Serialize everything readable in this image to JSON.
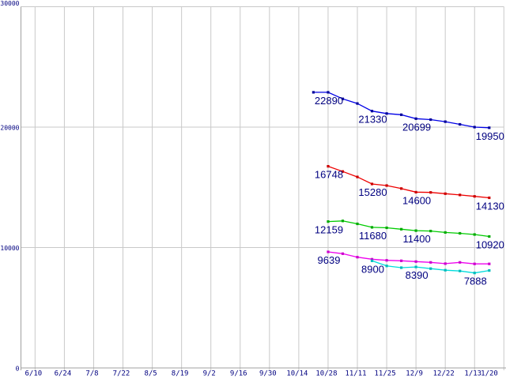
{
  "chart_data": {
    "type": "line",
    "title": "",
    "grid": true,
    "background": "#ffffff",
    "gridline_color": "#c9c9c9",
    "axis_color": "#a0a0a0",
    "tick_label_color": "#000080",
    "data_label_color": "#000080",
    "ylim": [
      0,
      30000
    ],
    "legend": "none",
    "x_tick_labels": [
      "6/10",
      "6/24",
      "7/8",
      "7/22",
      "8/5",
      "8/19",
      "9/2",
      "9/16",
      "9/30",
      "10/14",
      "10/28",
      "11/11",
      "11/25",
      "12/9",
      "12/22",
      "1/13",
      "1/20"
    ],
    "y_ticks": [
      {
        "label": "0",
        "value": 0
      },
      {
        "label": "10000",
        "value": 10000
      },
      {
        "label": "20000",
        "value": 20000
      },
      {
        "label": "30000",
        "value": 30000
      }
    ],
    "series": [
      {
        "name": "series-1-blue",
        "color": "#0000e6",
        "marker_color": "#000099",
        "start_step": 1,
        "values": [
          22890,
          22890,
          22350,
          21960,
          21330,
          21130,
          21030,
          20699,
          20620,
          20450,
          20230,
          20000,
          19950
        ],
        "labels": [
          {
            "index": 1,
            "text": "22890"
          },
          {
            "index": 4,
            "text": "21330"
          },
          {
            "index": 7,
            "text": "20699"
          },
          {
            "index": 12,
            "text": "19950"
          }
        ]
      },
      {
        "name": "series-2-red",
        "color": "#ee0000",
        "marker_color": "#cc0000",
        "start_step": 2,
        "values": [
          16748,
          16315,
          15860,
          15280,
          15150,
          14900,
          14600,
          14580,
          14470,
          14370,
          14250,
          14130
        ],
        "labels": [
          {
            "index": 0,
            "text": "16748"
          },
          {
            "index": 3,
            "text": "15280"
          },
          {
            "index": 6,
            "text": "14600"
          },
          {
            "index": 11,
            "text": "14130"
          }
        ]
      },
      {
        "name": "series-3-green",
        "color": "#00cc00",
        "marker_color": "#00aa00",
        "start_step": 2,
        "values": [
          12159,
          12210,
          11970,
          11680,
          11640,
          11520,
          11400,
          11370,
          11250,
          11180,
          11080,
          10920
        ],
        "labels": [
          {
            "index": 0,
            "text": "12159"
          },
          {
            "index": 3,
            "text": "11680"
          },
          {
            "index": 6,
            "text": "11400"
          },
          {
            "index": 11,
            "text": "10920"
          }
        ]
      },
      {
        "name": "series-4-magenta",
        "color": "#ee00ee",
        "marker_color": "#cc00cc",
        "start_step": 2,
        "values": [
          9639,
          9490,
          9200,
          9030,
          8935,
          8900,
          8835,
          8770,
          8660,
          8770,
          8640,
          8640
        ],
        "labels": [
          {
            "index": 0,
            "text": "9639"
          }
        ]
      },
      {
        "name": "series-5-cyan",
        "color": "#00dcdc",
        "marker_color": "#00bbbb",
        "start_step": 5,
        "values": [
          8900,
          8470,
          8330,
          8390,
          8250,
          8120,
          8050,
          7888,
          8090
        ],
        "labels": [
          {
            "index": 0,
            "text": "8900"
          },
          {
            "index": 3,
            "text": "8390"
          },
          {
            "index": 7,
            "text": "7888"
          }
        ]
      }
    ]
  }
}
